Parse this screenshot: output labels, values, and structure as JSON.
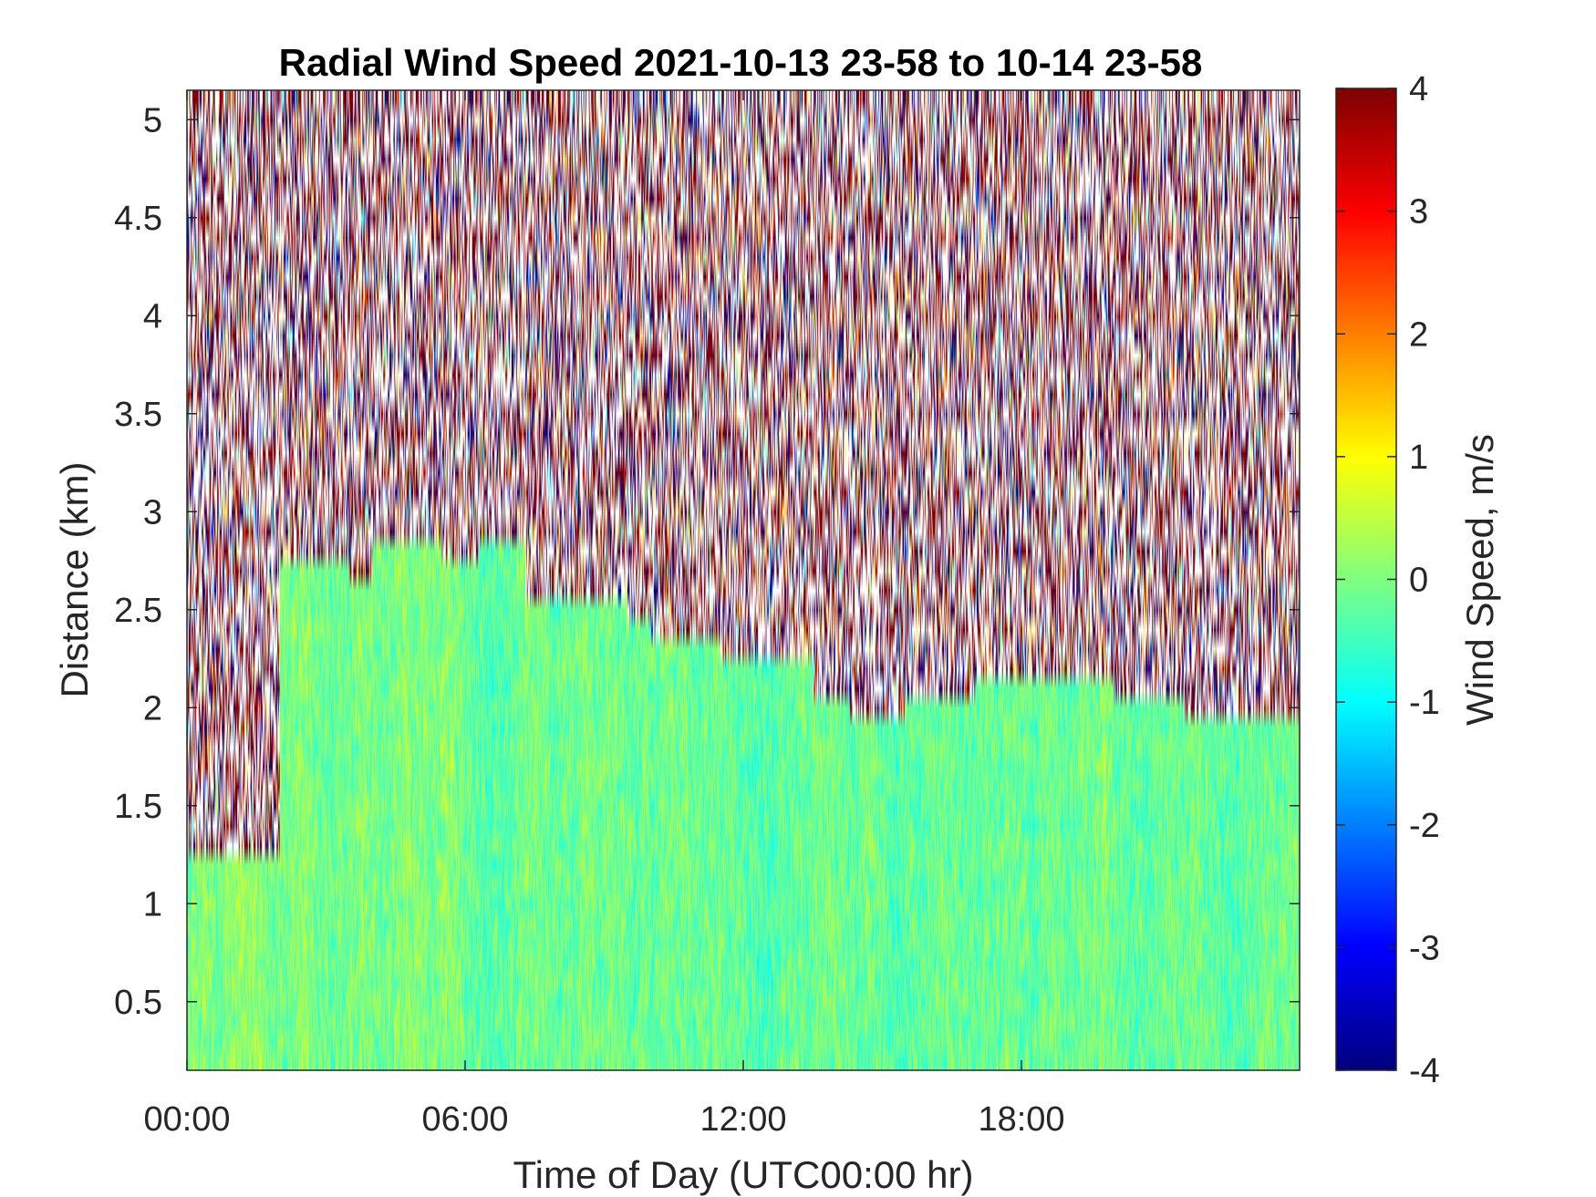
{
  "chart_data": {
    "type": "heatmap",
    "title": "Radial Wind Speed 2021-10-13 23-58 to 10-14 23-58",
    "xlabel": "Time of Day (UTC00:00 hr)",
    "ylabel": "Distance (km)",
    "colorbar_label": "Wind Speed, m/s",
    "colormap": "jet",
    "x_unit": "hours of day (UTC)",
    "xlim": [
      0,
      24
    ],
    "ylim": [
      0.15,
      5.15
    ],
    "clim": [
      -4,
      4
    ],
    "x_ticks": [
      0,
      6,
      12,
      18
    ],
    "x_tick_labels": [
      "00:00",
      "06:00",
      "12:00",
      "18:00"
    ],
    "y_ticks": [
      0.5,
      1,
      1.5,
      2,
      2.5,
      3,
      3.5,
      4,
      4.5,
      5
    ],
    "y_tick_labels": [
      "0.5",
      "1",
      "1.5",
      "2",
      "2.5",
      "3",
      "3.5",
      "4",
      "4.5",
      "5"
    ],
    "colorbar_ticks": [
      -4,
      -3,
      -2,
      -1,
      0,
      1,
      2,
      3,
      4
    ],
    "colorbar_tick_labels": [
      "-4",
      "-3",
      "-2",
      "-1",
      "0",
      "1",
      "2",
      "3",
      "4"
    ],
    "grid": false,
    "signal_top_km": [
      {
        "t": [
          0,
          2
        ],
        "km": 1.25
      },
      {
        "t": [
          2,
          3.5
        ],
        "km": 2.75
      },
      {
        "t": [
          3.5,
          4
        ],
        "km": 2.65
      },
      {
        "t": [
          4,
          5.5
        ],
        "km": 2.85
      },
      {
        "t": [
          5.5,
          6.3
        ],
        "km": 2.75
      },
      {
        "t": [
          6.3,
          7.3
        ],
        "km": 2.85
      },
      {
        "t": [
          7.3,
          9.5
        ],
        "km": 2.55
      },
      {
        "t": [
          9.5,
          10
        ],
        "km": 2.45
      },
      {
        "t": [
          10,
          11.5
        ],
        "km": 2.35
      },
      {
        "t": [
          11.5,
          13.5
        ],
        "km": 2.25
      },
      {
        "t": [
          13.5,
          14.3
        ],
        "km": 2.05
      },
      {
        "t": [
          14.3,
          15.5
        ],
        "km": 1.95
      },
      {
        "t": [
          15.5,
          17
        ],
        "km": 2.05
      },
      {
        "t": [
          17,
          18
        ],
        "km": 2.15
      },
      {
        "t": [
          18,
          20
        ],
        "km": 2.15
      },
      {
        "t": [
          20,
          21.5
        ],
        "km": 2.05
      },
      {
        "t": [
          21.5,
          24
        ],
        "km": 1.95
      }
    ],
    "typical_value_ms": {
      "below_signal_top": [
        -1,
        0.8
      ],
      "noise_above": [
        -4,
        4
      ]
    }
  }
}
